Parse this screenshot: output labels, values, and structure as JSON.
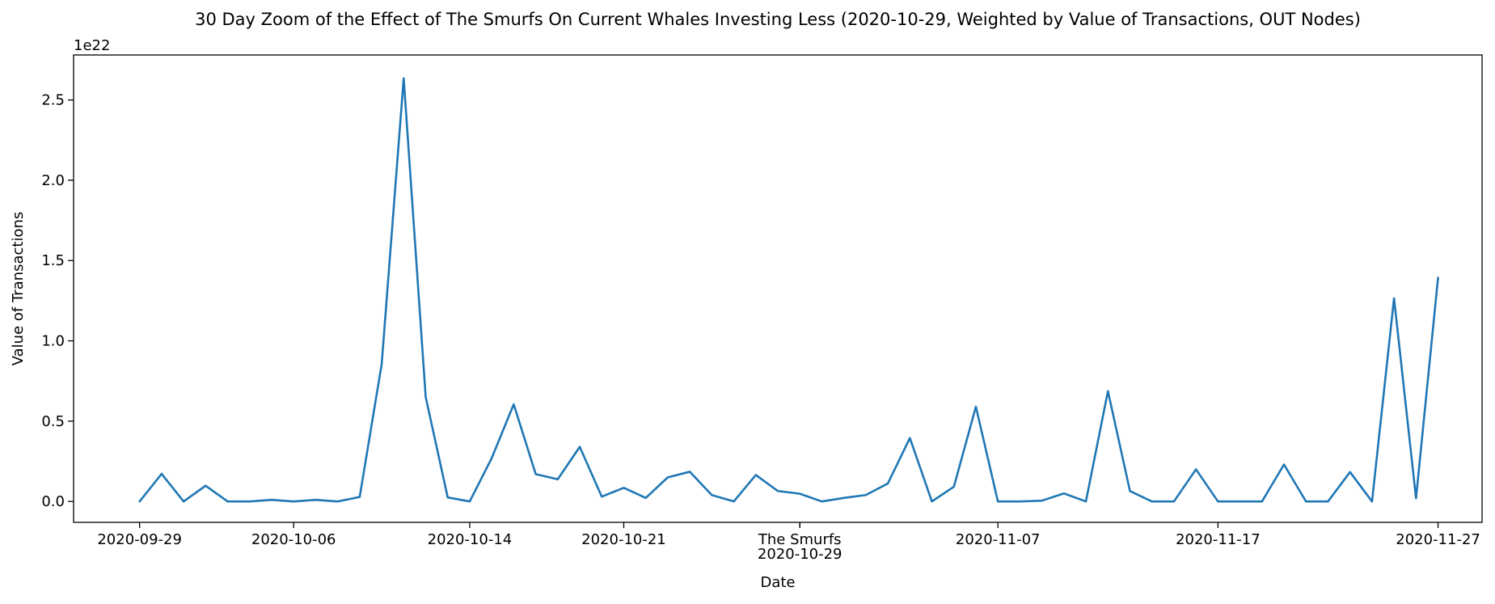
{
  "chart_data": {
    "type": "line",
    "title": "30 Day Zoom of the Effect of The Smurfs On Current Whales Investing Less (2020-10-29, Weighted by Value of Transactions, OUT Nodes)",
    "xlabel": "Date",
    "ylabel": "Value of Transactions",
    "y_offset_label": "1e22",
    "y_multiplier": 1e+22,
    "ylim": [
      -0.13,
      2.78
    ],
    "xlim": [
      "2020-09-26",
      "2020-11-29"
    ],
    "grid": false,
    "legend": "none",
    "line_color": "#1f77b4",
    "x_ticks": [
      {
        "date": "2020-09-29",
        "label": "2020-09-29"
      },
      {
        "date": "2020-10-06",
        "label": "2020-10-06"
      },
      {
        "date": "2020-10-14",
        "label": "2020-10-14"
      },
      {
        "date": "2020-10-21",
        "label": "2020-10-21"
      },
      {
        "date": "2020-10-29",
        "label": "2020-10-29"
      },
      {
        "date": "2020-11-07",
        "label": "2020-11-07"
      },
      {
        "date": "2020-11-17",
        "label": "2020-11-17"
      },
      {
        "date": "2020-11-27",
        "label": "2020-11-27"
      }
    ],
    "annotations": [
      {
        "date": "2020-10-29",
        "text": "The Smurfs"
      }
    ],
    "y_ticks": [
      {
        "value": 0.0,
        "label": "0.0"
      },
      {
        "value": 0.5,
        "label": "0.5"
      },
      {
        "value": 1.0,
        "label": "1.0"
      },
      {
        "value": 1.5,
        "label": "1.5"
      },
      {
        "value": 2.0,
        "label": "2.0"
      },
      {
        "value": 2.5,
        "label": "2.5"
      }
    ],
    "series": [
      {
        "x": [
          "2020-09-29",
          "2020-09-30",
          "2020-10-01",
          "2020-10-02",
          "2020-10-03",
          "2020-10-04",
          "2020-10-05",
          "2020-10-06",
          "2020-10-07",
          "2020-10-08",
          "2020-10-09",
          "2020-10-10",
          "2020-10-11",
          "2020-10-12",
          "2020-10-13",
          "2020-10-14",
          "2020-10-15",
          "2020-10-16",
          "2020-10-17",
          "2020-10-18",
          "2020-10-19",
          "2020-10-20",
          "2020-10-21",
          "2020-10-22",
          "2020-10-23",
          "2020-10-24",
          "2020-10-25",
          "2020-10-26",
          "2020-10-27",
          "2020-10-28",
          "2020-10-29",
          "2020-10-30",
          "2020-10-31",
          "2020-11-01",
          "2020-11-02",
          "2020-11-03",
          "2020-11-04",
          "2020-11-05",
          "2020-11-06",
          "2020-11-07",
          "2020-11-08",
          "2020-11-09",
          "2020-11-10",
          "2020-11-11",
          "2020-11-12",
          "2020-11-13",
          "2020-11-14",
          "2020-11-15",
          "2020-11-16",
          "2020-11-17",
          "2020-11-18",
          "2020-11-19",
          "2020-11-20",
          "2020-11-21",
          "2020-11-22",
          "2020-11-23",
          "2020-11-24",
          "2020-11-25",
          "2020-11-26",
          "2020-11-27"
        ],
        "values": [
          0.0,
          0.172,
          0.0,
          0.098,
          0.0,
          0.0,
          0.01,
          0.0,
          0.01,
          0.0,
          0.028,
          0.855,
          2.635,
          0.65,
          0.025,
          0.0,
          0.27,
          0.605,
          0.17,
          0.138,
          0.34,
          0.03,
          0.085,
          0.022,
          0.15,
          0.185,
          0.04,
          0.0,
          0.165,
          0.065,
          0.048,
          0.0,
          0.022,
          0.04,
          0.112,
          0.395,
          0.0,
          0.092,
          0.59,
          0.0,
          0.0,
          0.005,
          0.05,
          0.0,
          0.687,
          0.065,
          0.0,
          0.0,
          0.2,
          0.0,
          0.0,
          0.0,
          0.23,
          0.0,
          0.0,
          0.183,
          0.0,
          1.265,
          0.02,
          1.393
        ]
      }
    ]
  }
}
